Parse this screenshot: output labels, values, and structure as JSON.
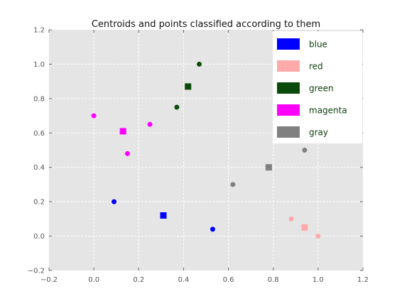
{
  "chart_data": {
    "type": "scatter",
    "title": "Centroids and points classified according to them",
    "xlabel": "",
    "ylabel": "",
    "xlim": [
      -0.2,
      1.2
    ],
    "ylim": [
      -0.2,
      1.2
    ],
    "xticks": [
      "−0.2",
      "0.0",
      "0.2",
      "0.4",
      "0.6",
      "0.8",
      "1.0",
      "1.2"
    ],
    "yticks": [
      "−0.2",
      "0.0",
      "0.2",
      "0.4",
      "0.6",
      "0.8",
      "1.0",
      "1.2"
    ],
    "grid": true,
    "legend_position": "top-right",
    "series": [
      {
        "name": "blue",
        "color": "#0000ff",
        "points": [
          {
            "x": 0.09,
            "y": 0.2
          },
          {
            "x": 0.53,
            "y": 0.04
          }
        ],
        "centroid": {
          "x": 0.31,
          "y": 0.12
        }
      },
      {
        "name": "red",
        "color": "#ffaaaa",
        "points": [
          {
            "x": 0.88,
            "y": 0.1
          },
          {
            "x": 1.0,
            "y": 0.0
          }
        ],
        "centroid": {
          "x": 0.94,
          "y": 0.05
        }
      },
      {
        "name": "green",
        "color": "#0a4a0a",
        "points": [
          {
            "x": 0.47,
            "y": 1.0
          },
          {
            "x": 0.37,
            "y": 0.75
          }
        ],
        "centroid": {
          "x": 0.42,
          "y": 0.87
        }
      },
      {
        "name": "magenta",
        "color": "#ff00ff",
        "points": [
          {
            "x": 0.0,
            "y": 0.7
          },
          {
            "x": 0.25,
            "y": 0.65
          },
          {
            "x": 0.15,
            "y": 0.48
          }
        ],
        "centroid": {
          "x": 0.13,
          "y": 0.61
        }
      },
      {
        "name": "gray",
        "color": "#808080",
        "points": [
          {
            "x": 0.94,
            "y": 0.5
          },
          {
            "x": 0.62,
            "y": 0.3
          }
        ],
        "centroid": {
          "x": 0.78,
          "y": 0.4
        }
      }
    ]
  }
}
